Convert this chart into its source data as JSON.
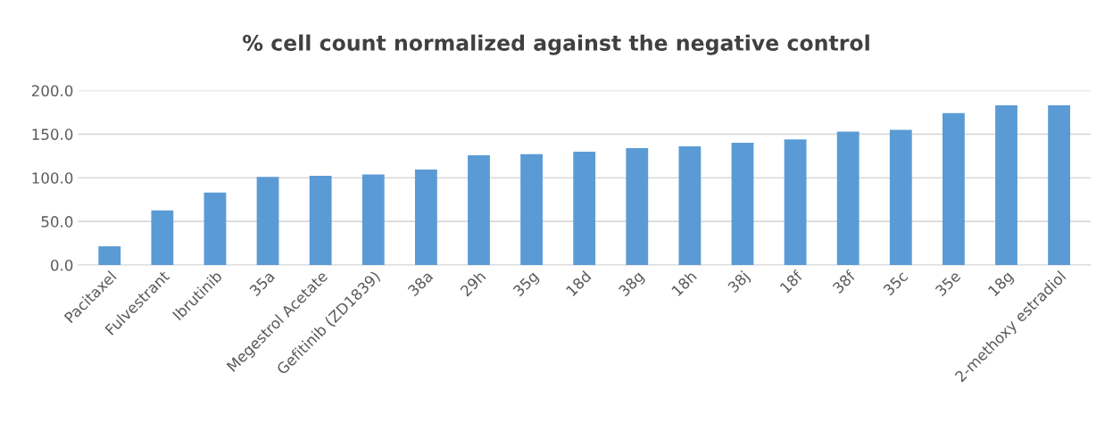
{
  "chart_data": {
    "type": "bar",
    "title": "% cell count normalized against the negative control",
    "categories": [
      "Pacitaxel",
      "Fulvestrant",
      "Ibrutinib",
      "35a",
      "Megestrol Acetate",
      "Gefitinib (ZD1839)",
      "38a",
      "29h",
      "35g",
      "18d",
      "38g",
      "18h",
      "38j",
      "18f",
      "38f",
      "35c",
      "35e",
      "18g",
      "2-methoxy estradiol"
    ],
    "values": [
      21.4,
      62.7,
      83.2,
      101,
      102.4,
      103.7,
      109.4,
      125.9,
      127.2,
      130,
      134,
      136,
      140,
      144,
      153,
      155,
      174,
      183,
      183
    ],
    "color": "#5b9bd5",
    "ylim": [
      0,
      200
    ],
    "yticks": [
      {
        "value": 0,
        "label": "0.0"
      },
      {
        "value": 50,
        "label": "50.0"
      },
      {
        "value": 100,
        "label": "100.0"
      },
      {
        "value": 150,
        "label": "150.0"
      },
      {
        "value": 200,
        "label": "200.0"
      }
    ],
    "grid": "y"
  }
}
